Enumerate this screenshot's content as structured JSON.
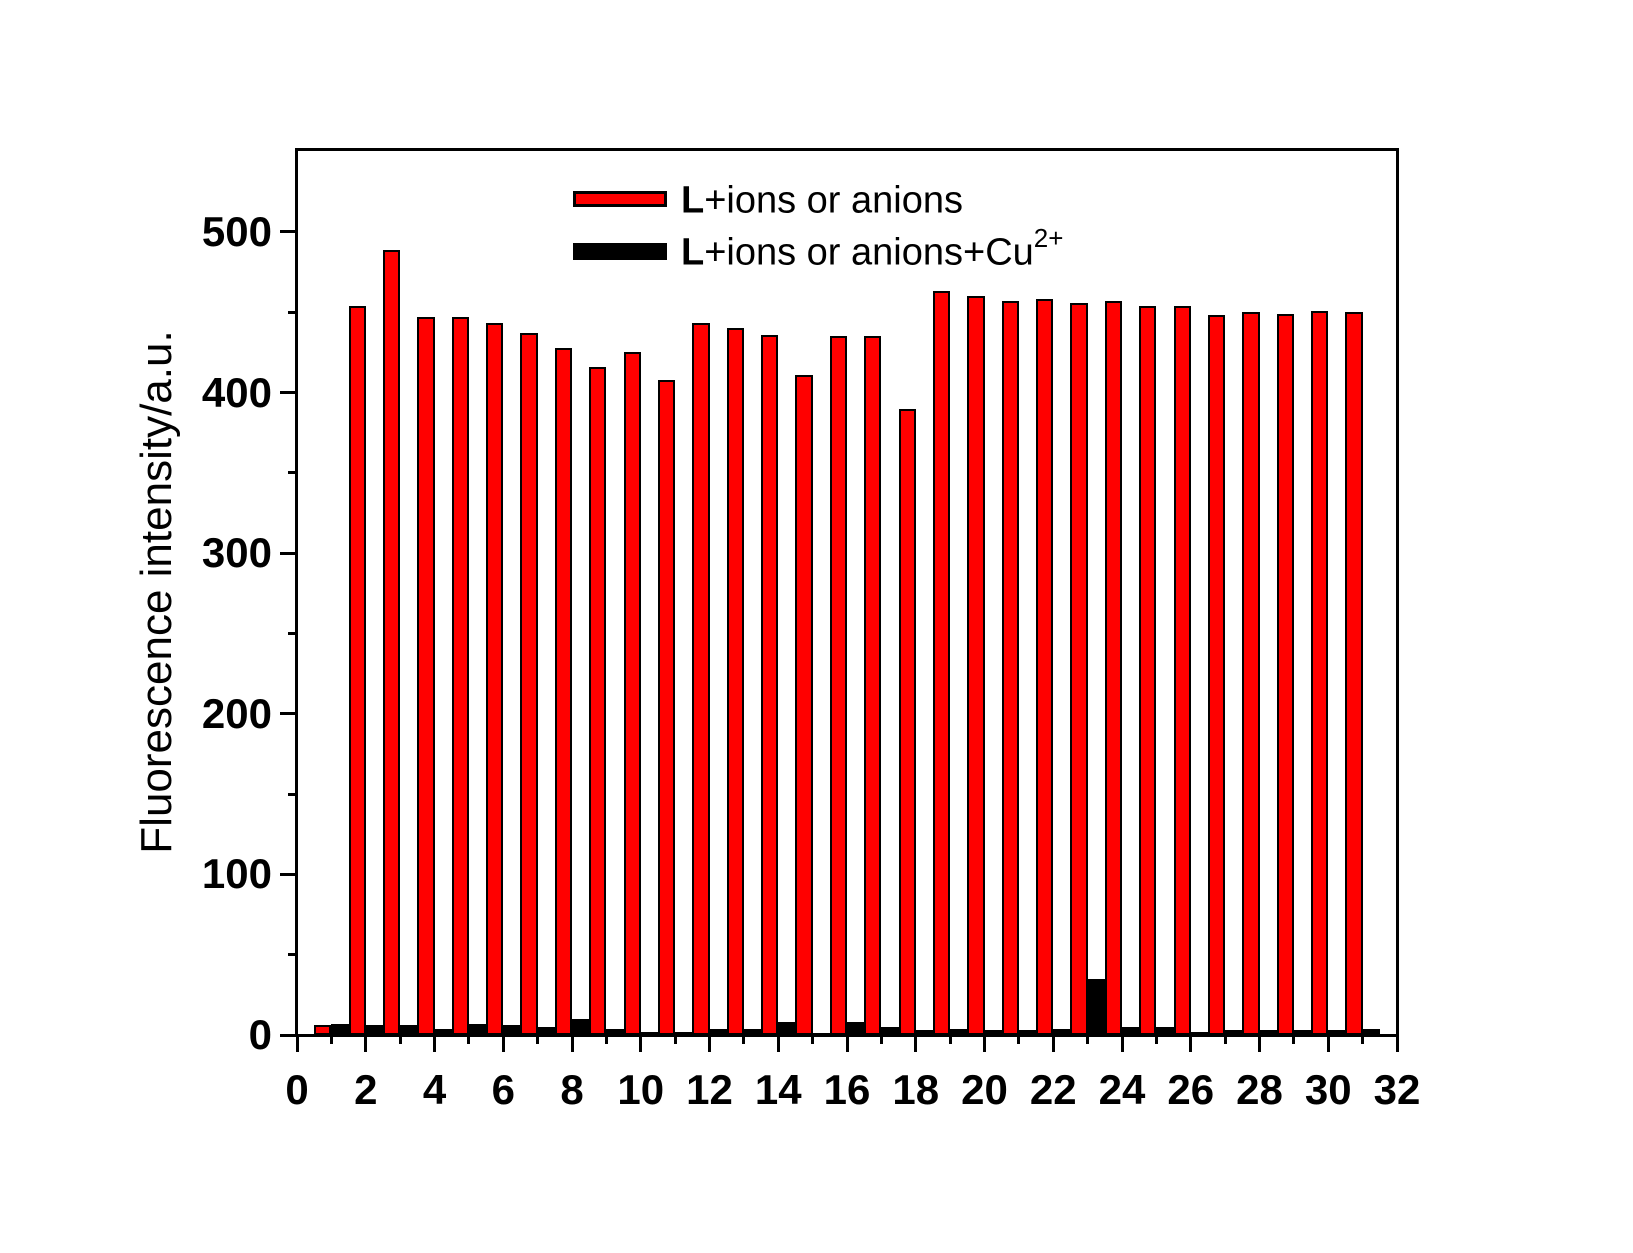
{
  "figure": {
    "background": "#ffffff",
    "y_axis": {
      "label": "Fluorescence intensity/a.u."
    },
    "legend": {
      "entries": [
        {
          "prefix": "L",
          "text": "+ions or anions",
          "sup": "",
          "color": "#ff0000"
        },
        {
          "prefix": "L",
          "text": "+ions or anions+Cu",
          "sup": "2+",
          "color": "#000000"
        }
      ]
    }
  },
  "chart_data": {
    "type": "bar",
    "title": "",
    "xlabel": "",
    "ylabel": "Fluorescence intensity/a.u.",
    "xlim": [
      0,
      32
    ],
    "ylim": [
      0,
      551
    ],
    "grid": false,
    "legend_position": "top-center",
    "bar_width": 0.5,
    "x": [
      1,
      2,
      3,
      4,
      5,
      6,
      7,
      8,
      9,
      10,
      11,
      12,
      13,
      14,
      15,
      16,
      17,
      18,
      19,
      20,
      21,
      22,
      23,
      24,
      25,
      26,
      27,
      28,
      29,
      30,
      31
    ],
    "series": [
      {
        "name": "L+ions or anions",
        "color": "#ff0000",
        "values": [
          6,
          454,
          489,
          447,
          447,
          443,
          437,
          428,
          416,
          425,
          408,
          443,
          440,
          436,
          411,
          435,
          435,
          390,
          463,
          460,
          457,
          458,
          456,
          457,
          454,
          454,
          448,
          450,
          449,
          451,
          450
        ]
      },
      {
        "name": "L+ions or anions+Cu2+",
        "color": "#000000",
        "values": [
          7,
          6,
          6,
          4,
          7,
          6,
          5,
          10,
          4,
          2,
          2,
          4,
          4,
          8,
          1,
          8,
          5,
          3,
          4,
          3,
          3,
          4,
          35,
          5,
          5,
          2,
          3,
          3,
          3,
          3,
          4
        ]
      }
    ],
    "xticks_major": [
      0,
      2,
      4,
      6,
      8,
      10,
      12,
      14,
      16,
      18,
      20,
      22,
      24,
      26,
      28,
      30,
      32
    ],
    "xticks_minor": [
      1,
      3,
      5,
      7,
      9,
      11,
      13,
      15,
      17,
      19,
      21,
      23,
      25,
      27,
      29,
      31
    ],
    "yticks_major": [
      0,
      100,
      200,
      300,
      400,
      500
    ],
    "yticks_minor": [
      50,
      150,
      250,
      350,
      450
    ]
  }
}
